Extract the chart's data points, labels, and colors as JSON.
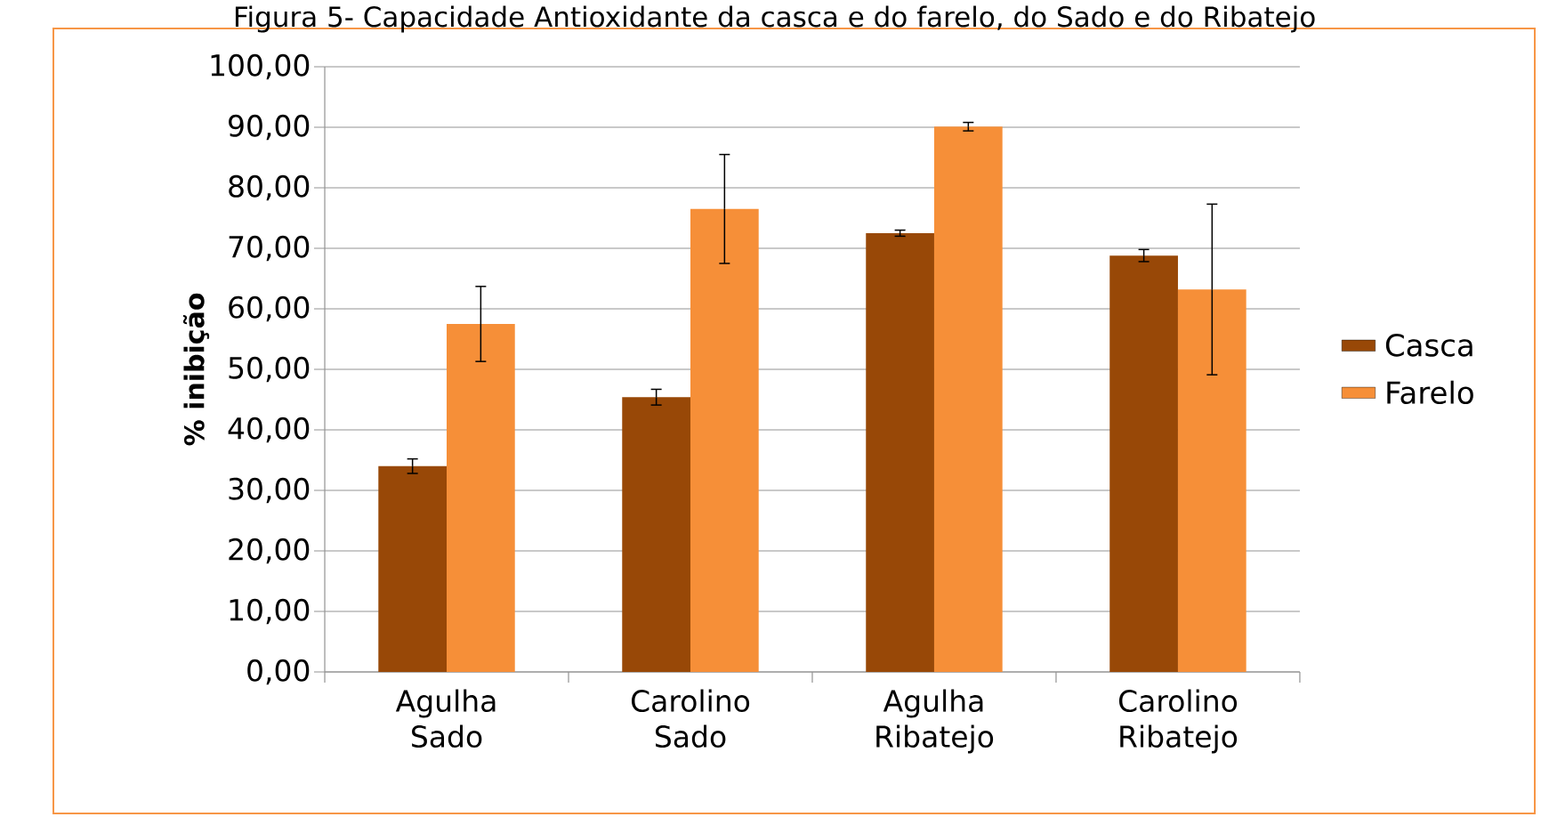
{
  "chart_data": {
    "type": "bar",
    "title": "Figura 5- Capacidade Antioxidante da casca e do farelo, do Sado e do Ribatejo",
    "ylabel": "% inibição",
    "categories": [
      "Agulha Sado",
      "Carolino Sado",
      "Agulha Ribatejo",
      "Carolino Ribatejo"
    ],
    "series": [
      {
        "name": "Casca",
        "color": "#984807",
        "values": [
          34.0,
          45.4,
          72.5,
          68.8
        ],
        "errors": [
          1.2,
          1.3,
          0.5,
          1.0
        ]
      },
      {
        "name": "Farelo",
        "color": "#f68f38",
        "values": [
          57.5,
          76.5,
          90.1,
          63.2
        ],
        "errors": [
          6.2,
          9.0,
          0.7,
          14.1
        ]
      }
    ],
    "ylim": [
      0,
      100
    ],
    "yticks": [
      {
        "value": 0,
        "label": "0,00"
      },
      {
        "value": 10,
        "label": "10,00"
      },
      {
        "value": 20,
        "label": "20,00"
      },
      {
        "value": 30,
        "label": "30,00"
      },
      {
        "value": 40,
        "label": "40,00"
      },
      {
        "value": 50,
        "label": "50,00"
      },
      {
        "value": 60,
        "label": "60,00"
      },
      {
        "value": 70,
        "label": "70,00"
      },
      {
        "value": 80,
        "label": "80,00"
      },
      {
        "value": 90,
        "label": "90,00"
      },
      {
        "value": 100,
        "label": "100,00"
      }
    ],
    "grid": "y",
    "legend": "right"
  }
}
